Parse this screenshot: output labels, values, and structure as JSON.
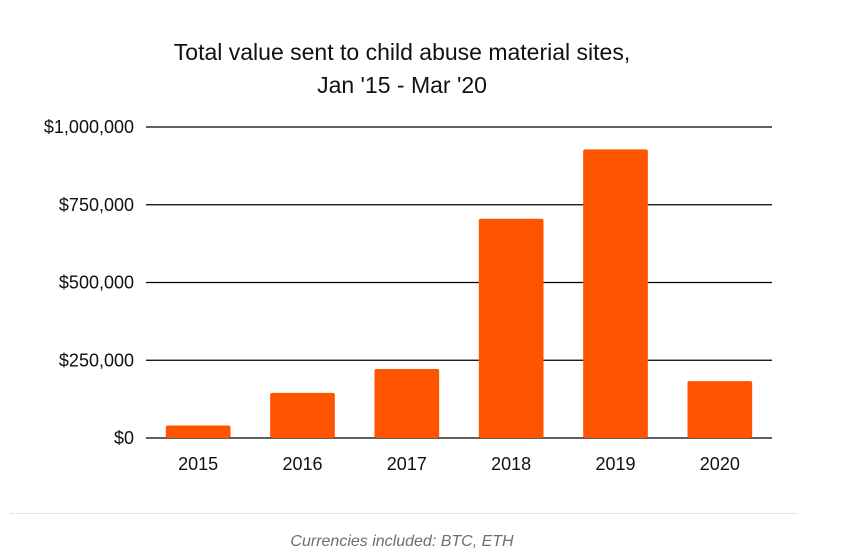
{
  "chart_data": {
    "type": "bar",
    "title_lines": [
      "Total value sent to child abuse material sites,",
      "Jan '15 - Mar '20"
    ],
    "categories": [
      "2015",
      "2016",
      "2017",
      "2018",
      "2019",
      "2020"
    ],
    "values": [
      40000,
      145000,
      222000,
      705000,
      928000,
      183000
    ],
    "ylim": [
      0,
      1000000
    ],
    "yticks": [
      0,
      250000,
      500000,
      750000,
      1000000
    ],
    "ytick_labels": [
      "$0",
      "$250,000",
      "$500,000",
      "$750,000",
      "$1,000,000"
    ],
    "xlabel": "",
    "ylabel": "",
    "grid": true,
    "bar_color": "#ff5500",
    "legend": "none"
  },
  "caption": "Currencies included: BTC, ETH"
}
